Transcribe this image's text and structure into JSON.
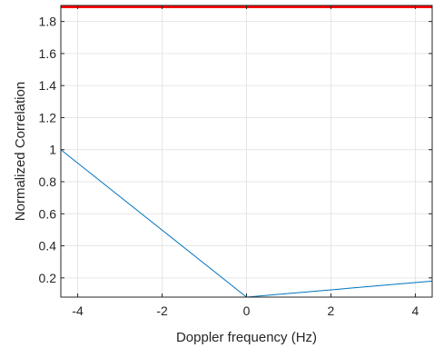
{
  "chart_data": {
    "type": "line",
    "title": "",
    "xlabel": "Doppler frequency (Hz)",
    "ylabel": "Normalized Correlation",
    "xlim": [
      -4.4,
      4.4
    ],
    "ylim": [
      0.08,
      1.9
    ],
    "grid": true,
    "x_ticks": [
      -4,
      -2,
      0,
      2,
      4
    ],
    "y_ticks": [
      0.2,
      0.4,
      0.6,
      0.8,
      1,
      1.2,
      1.4,
      1.6,
      1.8
    ],
    "x_tick_labels": [
      "-4",
      "-2",
      "0",
      "2",
      "4"
    ],
    "y_tick_labels": [
      "0.2",
      "0.4",
      "0.6",
      "0.8",
      "1",
      "1.2",
      "1.4",
      "1.6",
      "1.8"
    ],
    "series": [
      {
        "color": "#0072BD",
        "x": [
          -4.4,
          0,
          4.4
        ],
        "y": [
          1.0,
          0.08,
          0.18
        ]
      },
      {
        "color": "#FF0000",
        "x": [
          -4.4,
          4.4
        ],
        "y": [
          1.89,
          1.89
        ]
      }
    ]
  },
  "colors": {
    "axis": "#262626",
    "grid": "#e6e6e6"
  }
}
